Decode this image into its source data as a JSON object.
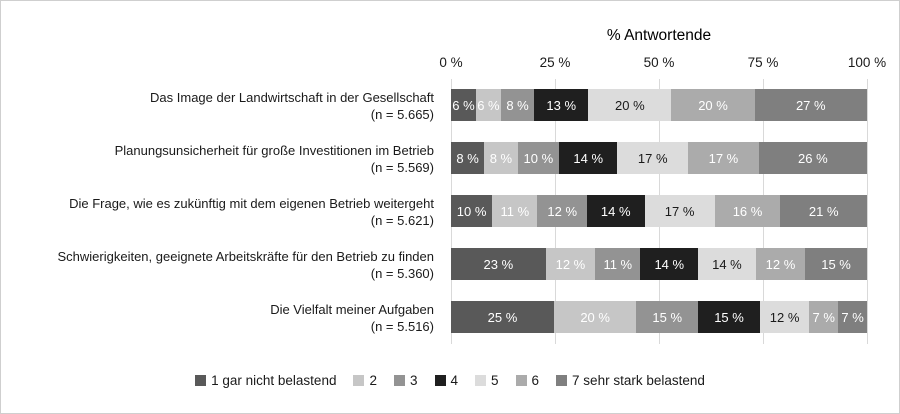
{
  "chart_data": {
    "type": "bar",
    "stacked": true,
    "orientation": "horizontal",
    "axis_title": "% Antwortende",
    "x_ticks": [
      "0 %",
      "25 %",
      "50 %",
      "75 %",
      "100 %"
    ],
    "x_range": [
      0,
      100
    ],
    "grid": true,
    "legend_position": "bottom",
    "value_suffix": " %",
    "categories": [
      {
        "label": "Das Image der Landwirtschaft in der Gesellschaft",
        "n_label": "(n = 5.665)"
      },
      {
        "label": "Planungsunsicherheit für große Investitionen im Betrieb",
        "n_label": "(n = 5.569)"
      },
      {
        "label": "Die Frage, wie es zukünftig mit dem eigenen Betrieb weitergeht",
        "n_label": "(n = 5.621)"
      },
      {
        "label": "Schwierigkeiten, geeignete Arbeitskräfte für den Betrieb zu finden",
        "n_label": "(n = 5.360)"
      },
      {
        "label": "Die Vielfalt meiner Aufgaben",
        "n_label": "(n = 5.516)"
      }
    ],
    "series": [
      {
        "name": "1 gar nicht belastend",
        "color": "#595959",
        "text_color": "#ffffff",
        "values": [
          6,
          8,
          10,
          23,
          25
        ]
      },
      {
        "name": "2",
        "color": "#c6c6c6",
        "text_color": "#ffffff",
        "values": [
          6,
          8,
          11,
          12,
          20
        ]
      },
      {
        "name": "3",
        "color": "#939393",
        "text_color": "#ffffff",
        "values": [
          8,
          10,
          12,
          11,
          15
        ]
      },
      {
        "name": "4",
        "color": "#1f1f1f",
        "text_color": "#ffffff",
        "values": [
          13,
          14,
          14,
          14,
          15
        ]
      },
      {
        "name": "5",
        "color": "#dcdcdc",
        "text_color": "#1a1a1a",
        "values": [
          20,
          17,
          17,
          14,
          12
        ]
      },
      {
        "name": "6",
        "color": "#ababab",
        "text_color": "#ffffff",
        "values": [
          20,
          17,
          16,
          12,
          7
        ]
      },
      {
        "name": "7 sehr stark belastend",
        "color": "#7f7f7f",
        "text_color": "#ffffff",
        "values": [
          27,
          26,
          21,
          15,
          7
        ]
      }
    ]
  },
  "colors": {
    "gridline": "#d9d9d9",
    "frame_border": "#cfcfcf",
    "background": "#ffffff",
    "text": "#1a1a1a"
  }
}
